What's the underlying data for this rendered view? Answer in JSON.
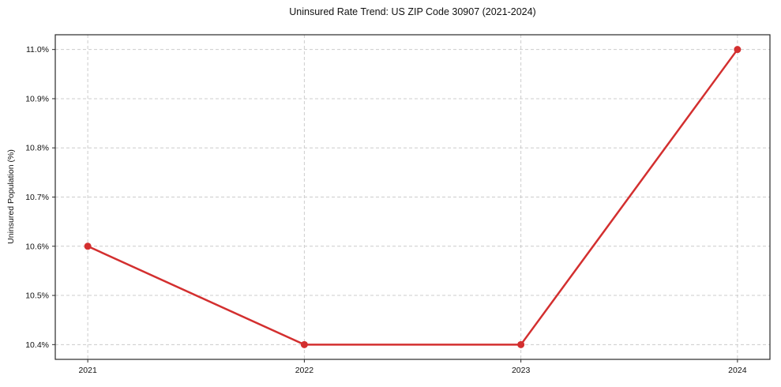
{
  "chart_data": {
    "type": "line",
    "title": "Uninsured Rate Trend: US ZIP Code 30907 (2021-2024)",
    "xlabel": "",
    "ylabel": "Uninsured Population (%)",
    "x": [
      2021,
      2022,
      2023,
      2024
    ],
    "values": [
      10.6,
      10.4,
      10.4,
      11.0
    ],
    "x_tick_labels": [
      "2021",
      "2022",
      "2023",
      "2024"
    ],
    "y_ticks": [
      10.4,
      10.5,
      10.6,
      10.7,
      10.8,
      10.9,
      11.0
    ],
    "y_tick_labels": [
      "10.4%",
      "10.5%",
      "10.6%",
      "10.7%",
      "10.8%",
      "10.9%",
      "11.0%"
    ],
    "xlim": [
      2020.85,
      2024.15
    ],
    "ylim": [
      10.37,
      11.03
    ],
    "grid": true,
    "grid_style": "dashed",
    "legend_position": "none",
    "line_color": "#d32f2f",
    "marker": "circle",
    "grid_color": "#cccccc",
    "spine_color": "#2a2a2a",
    "tick_text_color": "#111111",
    "background_color": "#ffffff"
  }
}
